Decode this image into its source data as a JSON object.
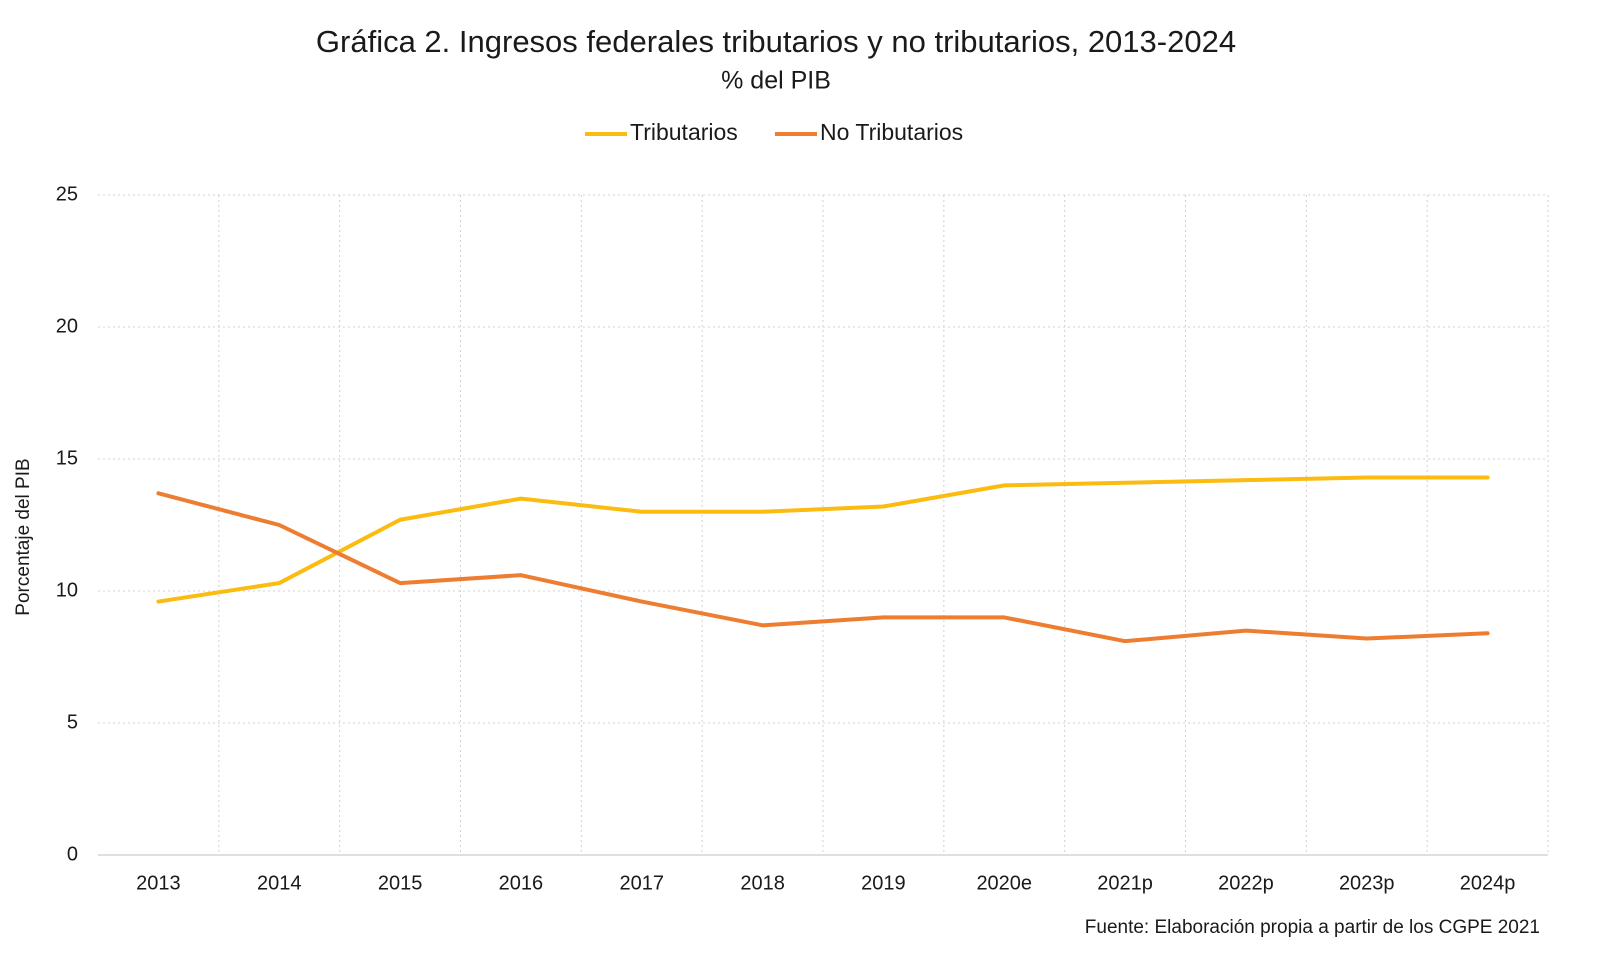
{
  "chart_data": {
    "type": "line",
    "title": "Gráfica 2. Ingresos federales tributarios y no tributarios, 2013-2024",
    "subtitle": "% del PIB",
    "y_label": "Porcentaje del PIB",
    "source": "Fuente: Elaboración propia a partir de los CGPE 2021",
    "categories": [
      "2013",
      "2014",
      "2015",
      "2016",
      "2017",
      "2018",
      "2019",
      "2020e",
      "2021p",
      "2022p",
      "2023p",
      "2024p"
    ],
    "series": [
      {
        "name": "Tributarios",
        "color": "#fbbb10",
        "values": [
          9.6,
          10.3,
          12.7,
          13.5,
          13.0,
          13.0,
          13.2,
          14.0,
          14.1,
          14.2,
          14.3,
          14.3
        ]
      },
      {
        "name": "No Tributarios",
        "color": "#ed7d31",
        "values": [
          13.7,
          12.5,
          10.3,
          10.6,
          9.6,
          8.7,
          9.0,
          9.0,
          8.1,
          8.5,
          8.2,
          8.4
        ]
      }
    ],
    "ylim": [
      0,
      25
    ],
    "yticks": [
      0,
      5,
      10,
      15,
      20,
      25
    ],
    "grid": true,
    "legend": "top"
  }
}
